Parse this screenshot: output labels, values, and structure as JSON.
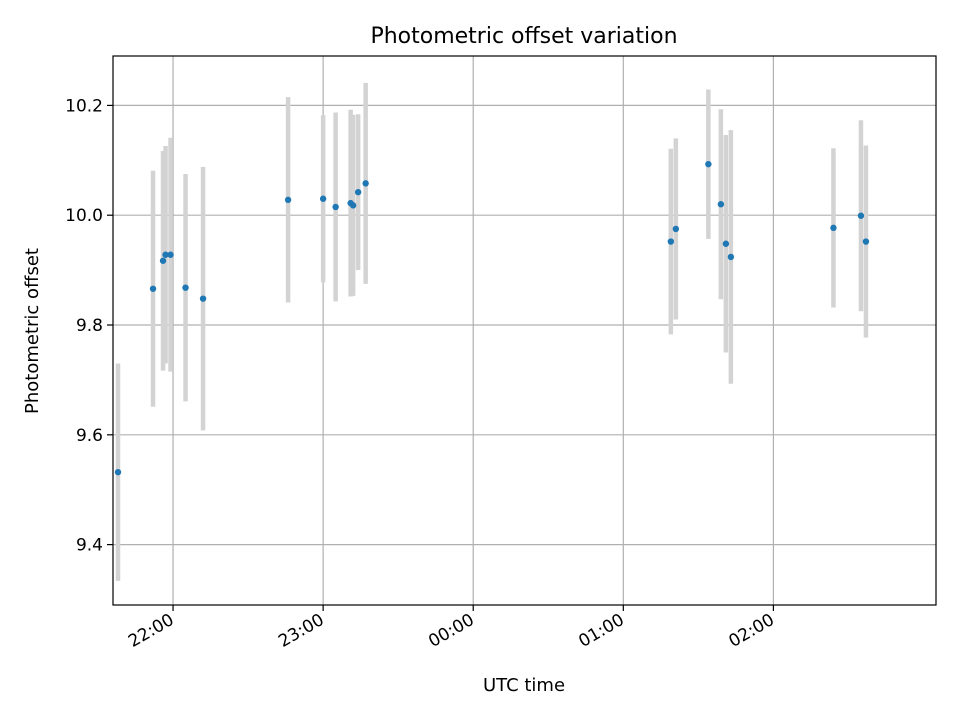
{
  "chart_data": {
    "type": "scatter",
    "title": "Photometric offset variation",
    "xlabel": "UTC time",
    "ylabel": "Photometric offset",
    "x_ticks": [
      "22:00",
      "23:00",
      "00:00",
      "01:00",
      "02:00"
    ],
    "y_ticks": [
      "9.4",
      "9.6",
      "9.8",
      "10.0",
      "10.2"
    ],
    "xlim": [
      "21:36",
      "03:05"
    ],
    "ylim": [
      9.29,
      10.29
    ],
    "grid": true,
    "errorbar_color": "#d3d3d3",
    "point_color": "#1f77b4",
    "points": [
      {
        "x": "21:38",
        "y": 9.532,
        "err": 0.198
      },
      {
        "x": "21:52",
        "y": 9.866,
        "err": 0.215
      },
      {
        "x": "21:56",
        "y": 9.917,
        "err": 0.2
      },
      {
        "x": "21:57",
        "y": 9.928,
        "err": 0.198
      },
      {
        "x": "21:59",
        "y": 9.928,
        "err": 0.213
      },
      {
        "x": "22:05",
        "y": 9.868,
        "err": 0.207
      },
      {
        "x": "22:12",
        "y": 9.848,
        "err": 0.24
      },
      {
        "x": "22:46",
        "y": 10.028,
        "err": 0.187
      },
      {
        "x": "23:00",
        "y": 10.03,
        "err": 0.152
      },
      {
        "x": "23:05",
        "y": 10.015,
        "err": 0.172
      },
      {
        "x": "23:11",
        "y": 10.022,
        "err": 0.17
      },
      {
        "x": "23:12",
        "y": 10.018,
        "err": 0.165
      },
      {
        "x": "23:14",
        "y": 10.042,
        "err": 0.142
      },
      {
        "x": "23:17",
        "y": 10.058,
        "err": 0.183
      },
      {
        "x": "01:19",
        "y": 9.952,
        "err": 0.169
      },
      {
        "x": "01:21",
        "y": 9.975,
        "err": 0.165
      },
      {
        "x": "01:34",
        "y": 10.093,
        "err": 0.136
      },
      {
        "x": "01:39",
        "y": 10.02,
        "err": 0.173
      },
      {
        "x": "01:41",
        "y": 9.948,
        "err": 0.198
      },
      {
        "x": "01:43",
        "y": 9.924,
        "err": 0.231
      },
      {
        "x": "02:24",
        "y": 9.977,
        "err": 0.145
      },
      {
        "x": "02:35",
        "y": 9.999,
        "err": 0.174
      },
      {
        "x": "02:37",
        "y": 9.952,
        "err": 0.175
      }
    ]
  }
}
